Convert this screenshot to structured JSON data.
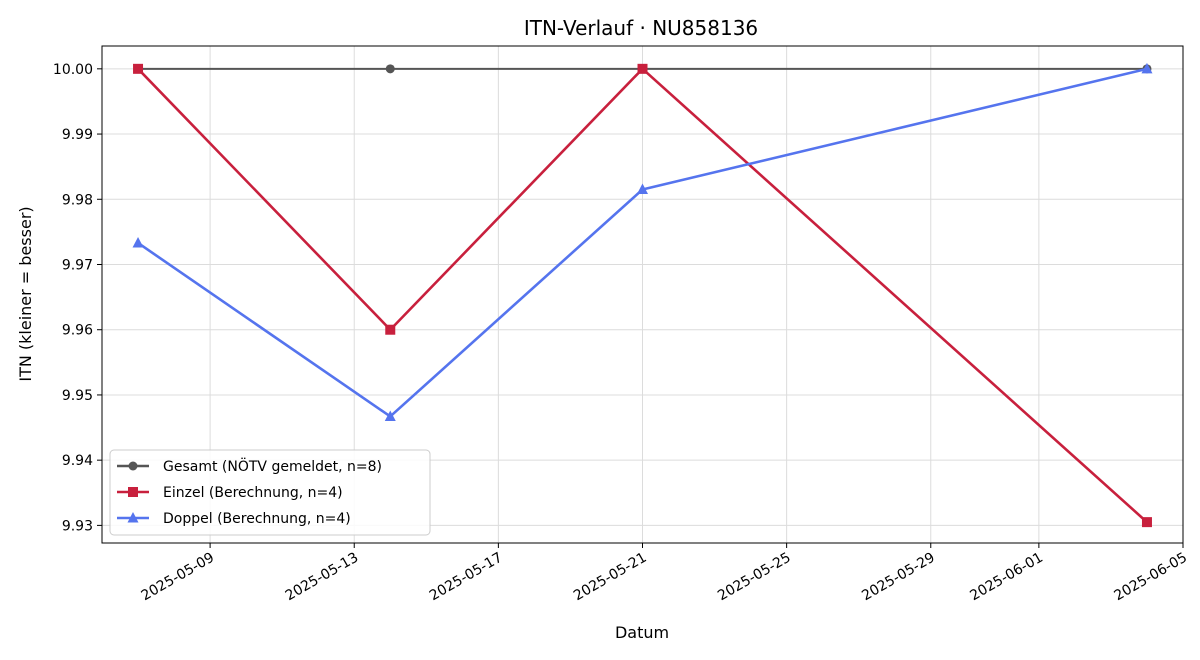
{
  "chart_data": {
    "type": "line",
    "title": "ITN-Verlauf · NU858136",
    "xlabel": "Datum",
    "ylabel": "ITN  (kleiner = besser)",
    "xlim": [
      "2025-05-06",
      "2025-06-05"
    ],
    "ylim": [
      9.9273,
      10.0035
    ],
    "grid": true,
    "legend_position": "lower-left",
    "x_ticks": [
      "2025-05-09",
      "2025-05-13",
      "2025-05-17",
      "2025-05-21",
      "2025-05-25",
      "2025-05-29",
      "2025-06-01",
      "2025-06-05"
    ],
    "y_ticks": [
      "9.93",
      "9.94",
      "9.95",
      "9.96",
      "9.97",
      "9.98",
      "9.99",
      "10.00"
    ],
    "series": [
      {
        "name": "Gesamt (NÖTV gemeldet, n=8)",
        "color": "#555555",
        "marker": "circle",
        "points": [
          {
            "x": "2025-05-07",
            "y": 10.0
          },
          {
            "x": "2025-05-14",
            "y": 10.0
          },
          {
            "x": "2025-05-21",
            "y": 10.0
          },
          {
            "x": "2025-06-04",
            "y": 10.0
          }
        ]
      },
      {
        "name": "Einzel (Berechnung, n=4)",
        "color": "#c8203d",
        "marker": "square",
        "points": [
          {
            "x": "2025-05-07",
            "y": 10.0
          },
          {
            "x": "2025-05-14",
            "y": 9.96
          },
          {
            "x": "2025-05-21",
            "y": 10.0
          },
          {
            "x": "2025-06-04",
            "y": 9.9305
          }
        ]
      },
      {
        "name": "Doppel (Berechnung, n=4)",
        "color": "#5574ee",
        "marker": "triangle",
        "points": [
          {
            "x": "2025-05-07",
            "y": 9.9733
          },
          {
            "x": "2025-05-14",
            "y": 9.9467
          },
          {
            "x": "2025-05-21",
            "y": 9.9815
          },
          {
            "x": "2025-06-04",
            "y": 10.0
          }
        ]
      }
    ]
  }
}
